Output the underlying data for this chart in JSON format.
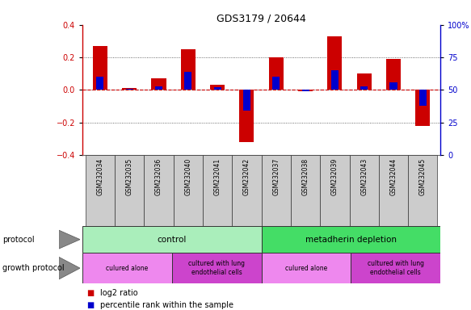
{
  "title": "GDS3179 / 20644",
  "samples": [
    "GSM232034",
    "GSM232035",
    "GSM232036",
    "GSM232040",
    "GSM232041",
    "GSM232042",
    "GSM232037",
    "GSM232038",
    "GSM232039",
    "GSM232043",
    "GSM232044",
    "GSM232045"
  ],
  "log2_ratio": [
    0.27,
    0.01,
    0.07,
    0.25,
    0.03,
    -0.32,
    0.2,
    -0.01,
    0.33,
    0.1,
    0.19,
    -0.22
  ],
  "percentile_rank_pct": [
    60,
    51,
    53,
    64,
    52,
    34,
    60,
    49,
    65,
    53,
    56,
    38
  ],
  "ylim": [
    -0.4,
    0.4
  ],
  "y2lim": [
    0,
    100
  ],
  "yticks": [
    -0.4,
    -0.2,
    0.0,
    0.2,
    0.4
  ],
  "y2ticks": [
    0,
    25,
    50,
    75,
    100
  ],
  "bar_color": "#cc0000",
  "blue_color": "#0000cc",
  "grid_color": "#444444",
  "bg_color": "#ffffff",
  "label_bg": "#cccccc",
  "protocol_groups": [
    {
      "label": "control",
      "start": 0,
      "end": 6,
      "color": "#aaeebb"
    },
    {
      "label": "metadherin depletion",
      "start": 6,
      "end": 12,
      "color": "#44dd66"
    }
  ],
  "growth_groups": [
    {
      "label": "culured alone",
      "start": 0,
      "end": 3,
      "color": "#ee88ee"
    },
    {
      "label": "cultured with lung\nendothelial cells",
      "start": 3,
      "end": 6,
      "color": "#cc44cc"
    },
    {
      "label": "culured alone",
      "start": 6,
      "end": 9,
      "color": "#ee88ee"
    },
    {
      "label": "cultured with lung\nendothelial cells",
      "start": 9,
      "end": 12,
      "color": "#cc44cc"
    }
  ],
  "legend_items": [
    {
      "label": "log2 ratio",
      "color": "#cc0000"
    },
    {
      "label": "percentile rank within the sample",
      "color": "#0000cc"
    }
  ],
  "left_labels": [
    "protocol",
    "growth protocol"
  ],
  "bar_width": 0.5,
  "blue_bar_width": 0.25
}
